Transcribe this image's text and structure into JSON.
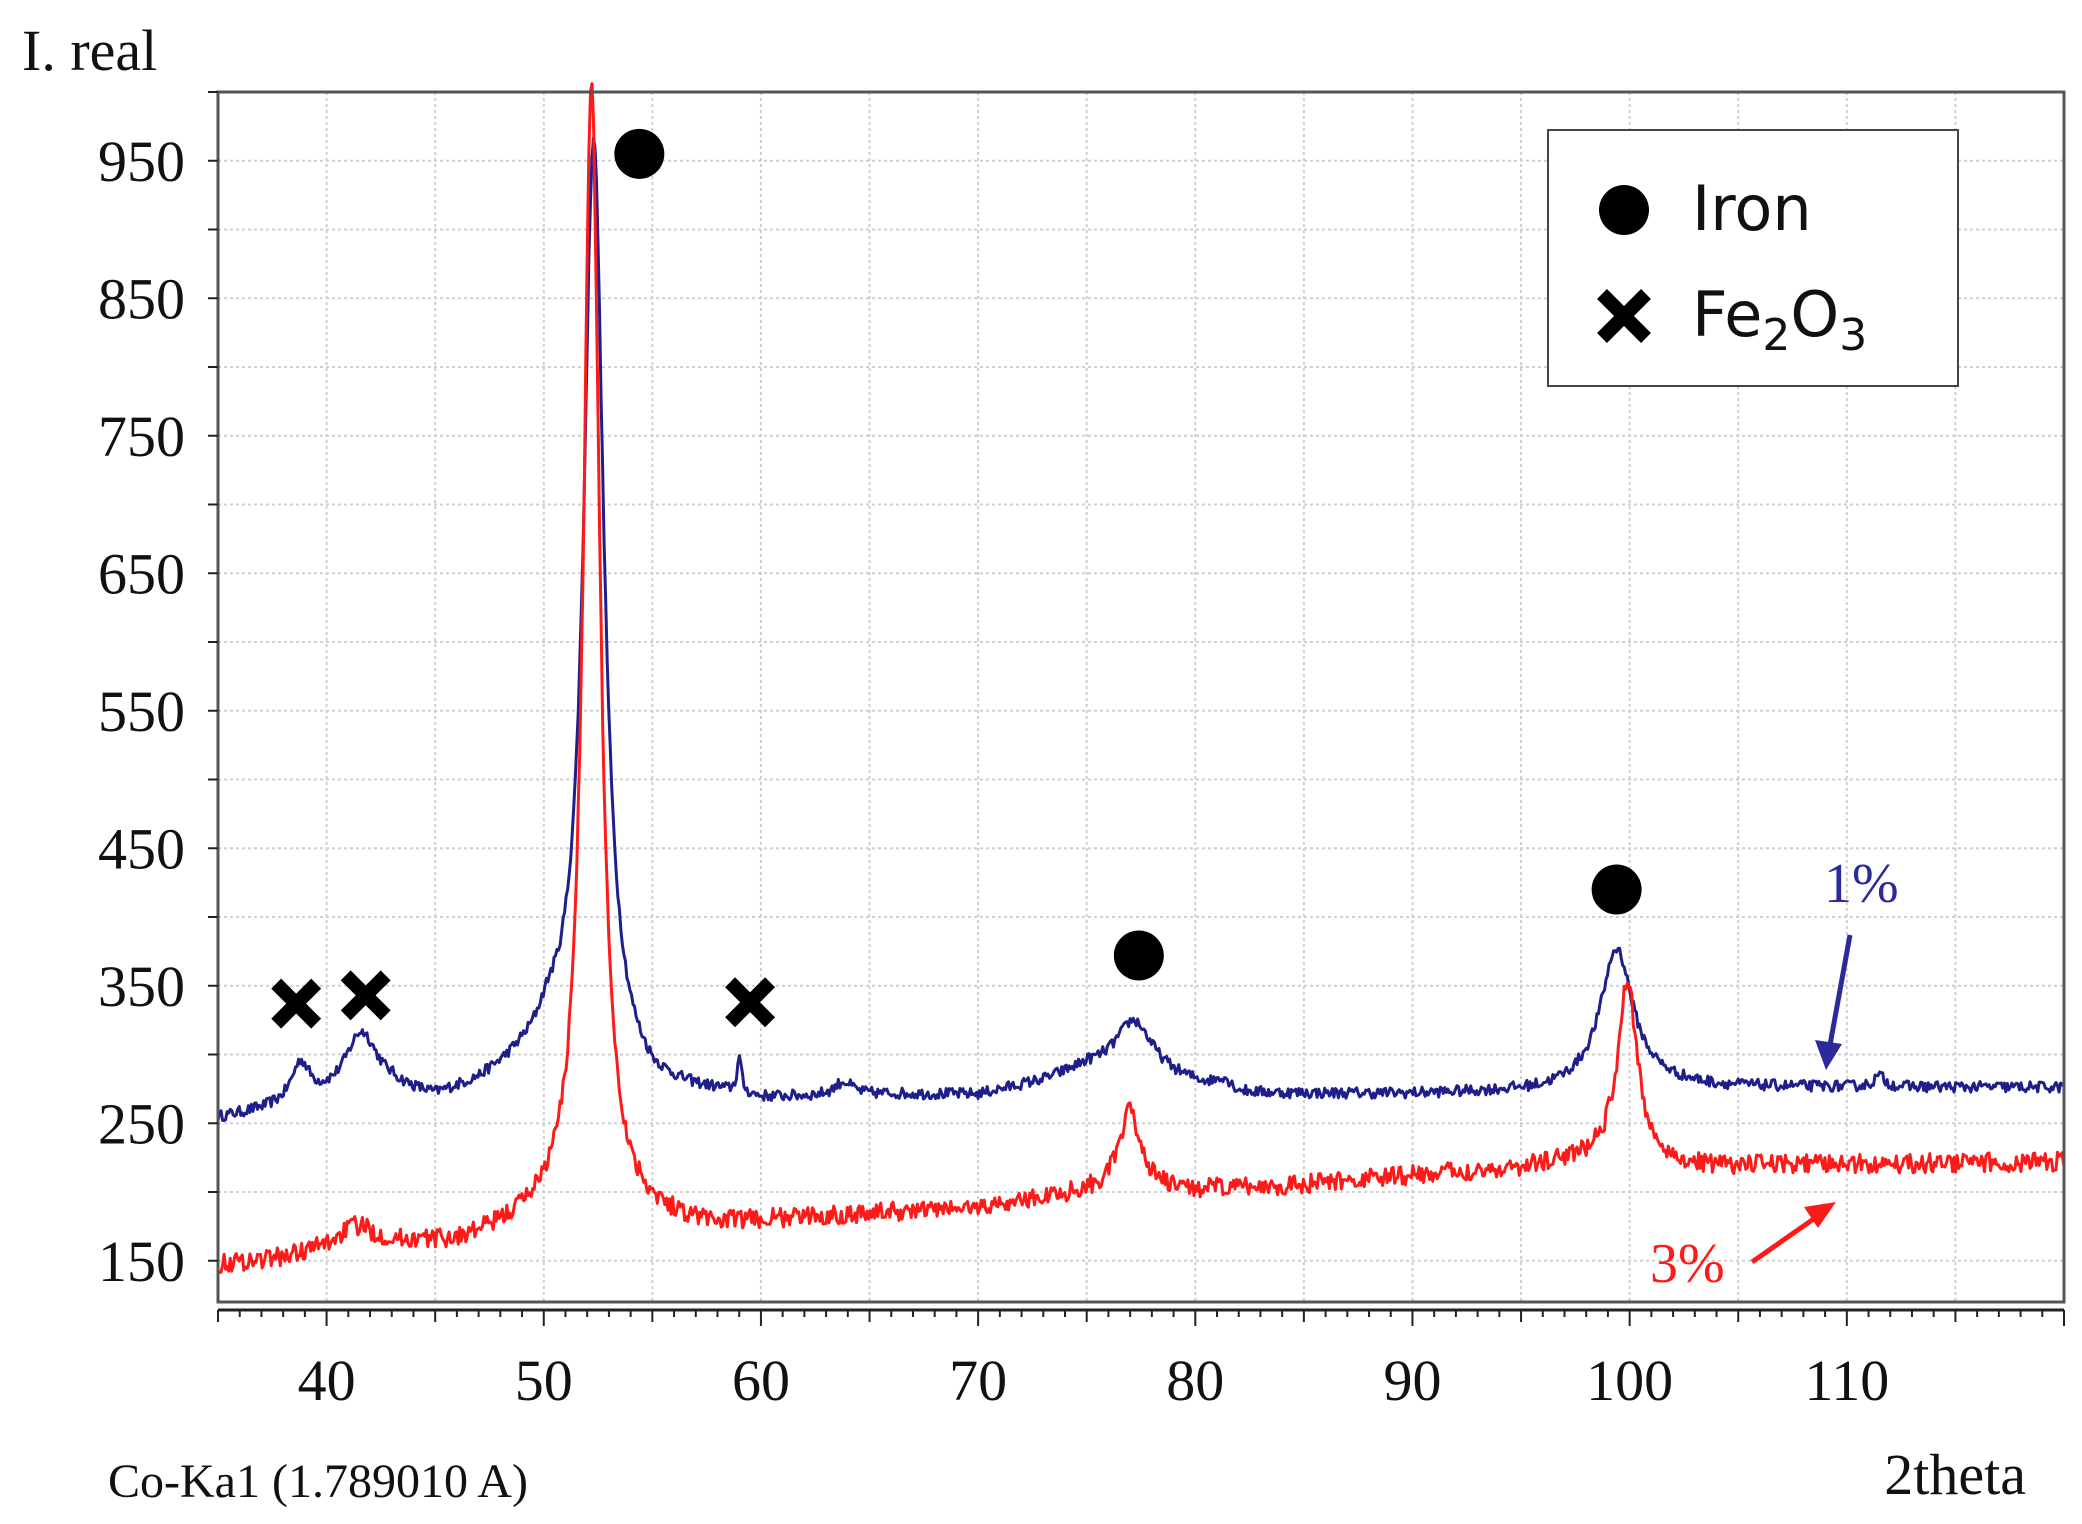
{
  "chart_data": {
    "type": "line",
    "title": "",
    "ylabel": "I. real",
    "xlabel": "2theta",
    "source_label": "Co-Ka1 (1.789010 A)",
    "xlim": [
      35,
      120
    ],
    "ylim": [
      120,
      1000
    ],
    "x_ticks": [
      40,
      50,
      60,
      70,
      80,
      90,
      100,
      110
    ],
    "y_ticks": [
      150,
      250,
      350,
      450,
      550,
      650,
      750,
      850,
      950
    ],
    "grid": true,
    "legend_position": "top-right",
    "legend": [
      {
        "marker": "circle",
        "label_main": "Iron",
        "label_sub": ""
      },
      {
        "marker": "cross",
        "label_main": "Fe",
        "label_sub": "2",
        "label_main2": "O",
        "label_sub2": "3"
      }
    ],
    "series": [
      {
        "name": "1%",
        "color": "#1f1f8c",
        "baseline": [
          [
            35,
            253
          ],
          [
            37,
            258
          ],
          [
            40,
            266
          ],
          [
            43,
            272
          ],
          [
            45,
            266
          ],
          [
            47,
            276
          ],
          [
            49,
            292
          ],
          [
            51,
            300
          ],
          [
            53,
            288
          ],
          [
            55,
            272
          ],
          [
            58,
            270
          ],
          [
            60,
            266
          ],
          [
            63,
            268
          ],
          [
            66,
            270
          ],
          [
            70,
            270
          ],
          [
            73,
            280
          ],
          [
            75,
            290
          ],
          [
            77,
            290
          ],
          [
            79,
            282
          ],
          [
            82,
            271
          ],
          [
            90,
            271
          ],
          [
            96,
            273
          ],
          [
            98,
            276
          ],
          [
            101,
            278
          ],
          [
            104,
            276
          ],
          [
            120,
            276
          ]
        ],
        "peaks": [
          [
            38.8,
            28,
            0.5
          ],
          [
            41.6,
            45,
            0.9
          ],
          [
            50.2,
            15,
            0.6
          ],
          [
            52.3,
            675,
            0.55
          ],
          [
            59.0,
            25,
            0.12
          ],
          [
            63.8,
            10,
            0.5
          ],
          [
            77.2,
            35,
            1.0
          ],
          [
            81.3,
            8,
            0.4
          ],
          [
            99.4,
            100,
            0.9
          ],
          [
            111.5,
            8,
            0.3
          ]
        ],
        "noise": 4,
        "annotation": "1%",
        "annotation_color": "#2a2a9a"
      },
      {
        "name": "3%",
        "color": "#ff1a1a",
        "baseline": [
          [
            35,
            147
          ],
          [
            38,
            152
          ],
          [
            40,
            160
          ],
          [
            41,
            167
          ],
          [
            43,
            163
          ],
          [
            46,
            163
          ],
          [
            48,
            172
          ],
          [
            50,
            185
          ],
          [
            52,
            195
          ],
          [
            54,
            185
          ],
          [
            56,
            178
          ],
          [
            58,
            175
          ],
          [
            60,
            178
          ],
          [
            65,
            184
          ],
          [
            70,
            188
          ],
          [
            75,
            200
          ],
          [
            77,
            203
          ],
          [
            79,
            200
          ],
          [
            85,
            205
          ],
          [
            90,
            212
          ],
          [
            95,
            217
          ],
          [
            97,
            222
          ],
          [
            99,
            224
          ],
          [
            103,
            218
          ],
          [
            110,
            220
          ],
          [
            120,
            222
          ]
        ],
        "peaks": [
          [
            41.5,
            8,
            0.8
          ],
          [
            52.2,
            815,
            0.45
          ],
          [
            77.0,
            55,
            0.6
          ],
          [
            99.9,
            130,
            0.55
          ]
        ],
        "noise": 7,
        "annotation": "3%",
        "annotation_color": "#ff1a1a"
      }
    ],
    "phase_markers": [
      {
        "type": "circle",
        "x": 54.4,
        "y": 955
      },
      {
        "type": "circle",
        "x": 77.4,
        "y": 372
      },
      {
        "type": "circle",
        "x": 99.4,
        "y": 420
      },
      {
        "type": "cross",
        "x": 38.6,
        "y": 337
      },
      {
        "type": "cross",
        "x": 41.8,
        "y": 343
      },
      {
        "type": "cross",
        "x": 59.5,
        "y": 338
      }
    ]
  }
}
